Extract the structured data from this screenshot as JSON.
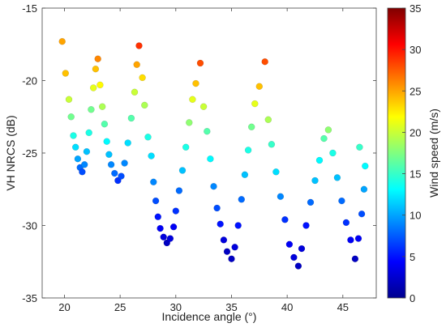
{
  "chart_data": {
    "type": "scatter",
    "title": "",
    "xlabel": "Incidence angle (°)",
    "ylabel": "VH NRCS (dB)",
    "xlim": [
      18,
      48
    ],
    "ylim": [
      -35,
      -15
    ],
    "xticks": [
      20,
      25,
      30,
      35,
      40,
      45
    ],
    "yticks": [
      -15,
      -20,
      -25,
      -30,
      -35
    ],
    "grid": false,
    "legend": "none",
    "colorbar": {
      "label": "Wind speed (m/s)",
      "range": [
        0,
        35
      ],
      "ticks": [
        0,
        5,
        10,
        15,
        20,
        25,
        30,
        35
      ],
      "colormap": "jet",
      "colors": [
        "#00008f",
        "#0000ff",
        "#0080ff",
        "#00ffff",
        "#80ff80",
        "#ffff00",
        "#ff8000",
        "#ff0000",
        "#800000"
      ]
    },
    "series": [
      {
        "columns": [
          "incidence_angle",
          "vh_nrcs",
          "wind_speed"
        ],
        "points": [
          [
            19.8,
            -17.3,
            25
          ],
          [
            20.1,
            -19.5,
            24
          ],
          [
            20.4,
            -21.3,
            20
          ],
          [
            20.6,
            -22.5,
            17
          ],
          [
            20.8,
            -23.8,
            14
          ],
          [
            21.0,
            -24.6,
            12
          ],
          [
            21.2,
            -25.4,
            10
          ],
          [
            21.4,
            -26.0,
            8
          ],
          [
            21.6,
            -26.3,
            7
          ],
          [
            21.8,
            -25.8,
            9
          ],
          [
            22.0,
            -24.9,
            11
          ],
          [
            22.2,
            -23.6,
            14
          ],
          [
            22.4,
            -22.0,
            17
          ],
          [
            22.6,
            -20.5,
            21
          ],
          [
            22.8,
            -19.2,
            24
          ],
          [
            23.0,
            -18.5,
            26
          ],
          [
            23.2,
            -20.3,
            22
          ],
          [
            23.4,
            -21.8,
            19
          ],
          [
            23.6,
            -23.0,
            16
          ],
          [
            23.8,
            -24.2,
            13
          ],
          [
            24.0,
            -25.1,
            11
          ],
          [
            24.2,
            -25.8,
            9
          ],
          [
            24.5,
            -26.4,
            8
          ],
          [
            24.8,
            -26.9,
            6
          ],
          [
            25.1,
            -26.6,
            7
          ],
          [
            25.4,
            -25.7,
            9
          ],
          [
            25.7,
            -24.3,
            12
          ],
          [
            26.0,
            -22.6,
            16
          ],
          [
            26.3,
            -20.8,
            20
          ],
          [
            26.5,
            -18.9,
            25
          ],
          [
            26.7,
            -17.6,
            29
          ],
          [
            27.0,
            -19.8,
            23
          ],
          [
            27.2,
            -21.7,
            19
          ],
          [
            27.5,
            -23.9,
            14
          ],
          [
            27.8,
            -25.2,
            12
          ],
          [
            28.0,
            -27.0,
            9
          ],
          [
            28.2,
            -28.3,
            7
          ],
          [
            28.4,
            -29.4,
            5
          ],
          [
            28.6,
            -30.2,
            4
          ],
          [
            28.9,
            -30.8,
            3
          ],
          [
            29.2,
            -31.2,
            2
          ],
          [
            29.5,
            -30.9,
            3
          ],
          [
            29.8,
            -30.1,
            4
          ],
          [
            30.0,
            -29.0,
            6
          ],
          [
            30.3,
            -27.6,
            8
          ],
          [
            30.6,
            -26.2,
            11
          ],
          [
            30.9,
            -24.6,
            14
          ],
          [
            31.2,
            -22.9,
            18
          ],
          [
            31.5,
            -21.3,
            21
          ],
          [
            31.8,
            -20.2,
            24
          ],
          [
            32.2,
            -18.8,
            28
          ],
          [
            32.5,
            -21.8,
            20
          ],
          [
            32.8,
            -23.5,
            16
          ],
          [
            33.1,
            -25.4,
            13
          ],
          [
            33.4,
            -27.3,
            9
          ],
          [
            33.7,
            -28.8,
            7
          ],
          [
            34.0,
            -29.9,
            5
          ],
          [
            34.3,
            -31.0,
            3
          ],
          [
            34.6,
            -31.8,
            2
          ],
          [
            35.0,
            -32.3,
            2
          ],
          [
            35.3,
            -31.5,
            3
          ],
          [
            35.6,
            -30.0,
            5
          ],
          [
            35.9,
            -28.2,
            8
          ],
          [
            36.2,
            -26.5,
            11
          ],
          [
            36.5,
            -24.8,
            14
          ],
          [
            36.8,
            -23.2,
            17
          ],
          [
            37.1,
            -21.6,
            21
          ],
          [
            37.5,
            -20.4,
            24
          ],
          [
            38.0,
            -18.7,
            28
          ],
          [
            38.3,
            -22.7,
            19
          ],
          [
            38.6,
            -24.4,
            15
          ],
          [
            39.0,
            -26.3,
            12
          ],
          [
            39.4,
            -28.0,
            9
          ],
          [
            39.8,
            -29.6,
            6
          ],
          [
            40.2,
            -31.3,
            4
          ],
          [
            40.6,
            -32.2,
            3
          ],
          [
            41.0,
            -32.8,
            2
          ],
          [
            41.3,
            -31.6,
            3
          ],
          [
            41.7,
            -30.0,
            5
          ],
          [
            42.1,
            -28.4,
            8
          ],
          [
            42.5,
            -26.9,
            11
          ],
          [
            42.9,
            -25.5,
            13
          ],
          [
            43.3,
            -24.0,
            16
          ],
          [
            43.7,
            -23.4,
            18
          ],
          [
            44.1,
            -25.0,
            14
          ],
          [
            44.5,
            -26.7,
            11
          ],
          [
            44.9,
            -28.3,
            8
          ],
          [
            45.3,
            -29.8,
            6
          ],
          [
            45.7,
            -31.0,
            4
          ],
          [
            46.1,
            -32.3,
            2
          ],
          [
            46.4,
            -30.9,
            4
          ],
          [
            46.7,
            -29.2,
            7
          ],
          [
            46.9,
            -27.5,
            10
          ],
          [
            47.0,
            -25.9,
            13
          ],
          [
            46.5,
            -24.6,
            15
          ]
        ]
      }
    ]
  }
}
